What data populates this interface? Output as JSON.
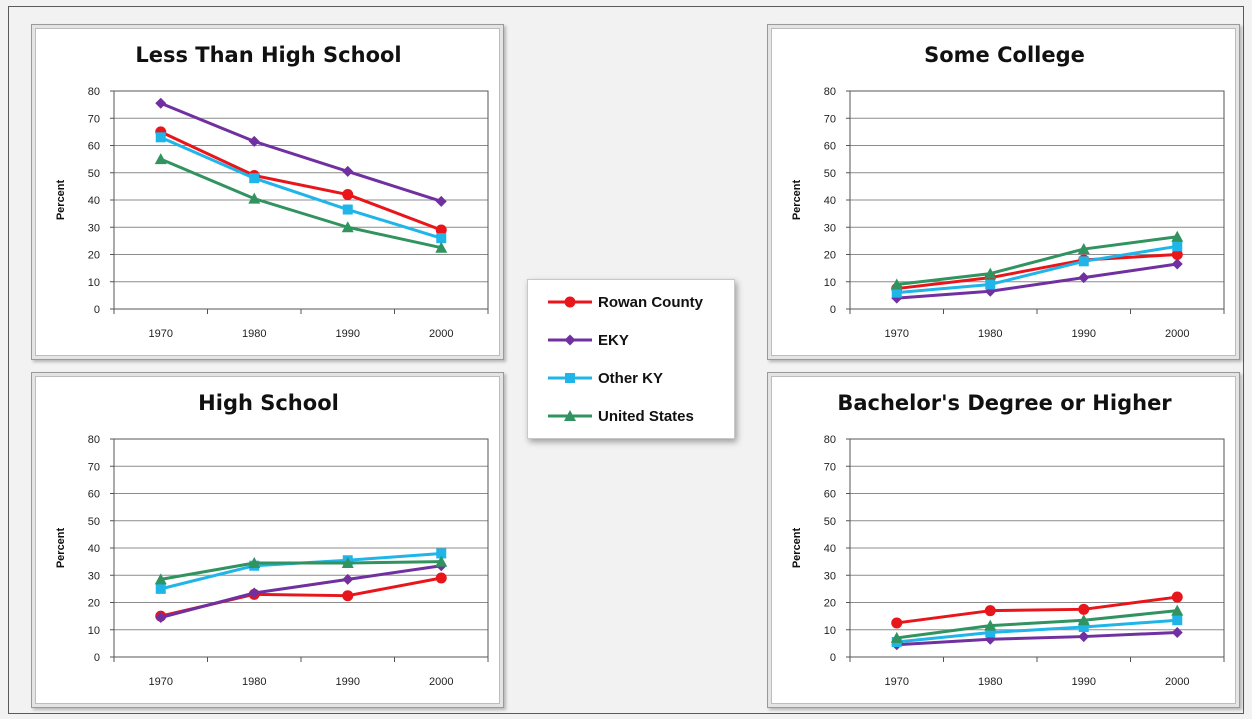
{
  "series_meta": [
    {
      "name": "Rowan County",
      "color": "#e8151b",
      "marker": "circle"
    },
    {
      "name": "EKY",
      "color": "#7030a0",
      "marker": "diamond"
    },
    {
      "name": "Other KY",
      "color": "#1fb5e9",
      "marker": "square"
    },
    {
      "name": "United States",
      "color": "#31935f",
      "marker": "triangle"
    }
  ],
  "chart_data": [
    {
      "type": "line",
      "title": "Less Than High School",
      "ylabel": "Percent",
      "xlabel": "",
      "categories": [
        "1970",
        "1980",
        "1990",
        "2000"
      ],
      "ylim": [
        0,
        80
      ],
      "yticks": [
        0,
        10,
        20,
        30,
        40,
        50,
        60,
        70,
        80
      ],
      "grid": true,
      "series": [
        {
          "name": "Rowan County",
          "values": [
            65,
            49,
            42,
            29
          ]
        },
        {
          "name": "EKY",
          "values": [
            75.5,
            61.5,
            50.5,
            39.5
          ]
        },
        {
          "name": "Other KY",
          "values": [
            63,
            48,
            36.5,
            26
          ]
        },
        {
          "name": "United States",
          "values": [
            55,
            40.5,
            30,
            22.5
          ]
        }
      ]
    },
    {
      "type": "line",
      "title": "Some College",
      "ylabel": "Percent",
      "xlabel": "",
      "categories": [
        "1970",
        "1980",
        "1990",
        "2000"
      ],
      "ylim": [
        0,
        80
      ],
      "yticks": [
        0,
        10,
        20,
        30,
        40,
        50,
        60,
        70,
        80
      ],
      "grid": true,
      "series": [
        {
          "name": "Rowan County",
          "values": [
            7.5,
            11.5,
            18,
            20
          ]
        },
        {
          "name": "EKY",
          "values": [
            4,
            6.5,
            11.5,
            16.5
          ]
        },
        {
          "name": "Other KY",
          "values": [
            6,
            9,
            17.5,
            23
          ]
        },
        {
          "name": "United States",
          "values": [
            9,
            13,
            22,
            26.5
          ]
        }
      ]
    },
    {
      "type": "line",
      "title": "High School",
      "ylabel": "Percent",
      "xlabel": "",
      "categories": [
        "1970",
        "1980",
        "1990",
        "2000"
      ],
      "ylim": [
        0,
        80
      ],
      "yticks": [
        0,
        10,
        20,
        30,
        40,
        50,
        60,
        70,
        80
      ],
      "grid": true,
      "series": [
        {
          "name": "Rowan County",
          "values": [
            15,
            23,
            22.5,
            29
          ]
        },
        {
          "name": "EKY",
          "values": [
            14.5,
            23.5,
            28.5,
            33.5
          ]
        },
        {
          "name": "Other KY",
          "values": [
            25,
            33.5,
            35.5,
            38
          ]
        },
        {
          "name": "United States",
          "values": [
            28.5,
            34.5,
            34.5,
            35
          ]
        }
      ]
    },
    {
      "type": "line",
      "title": "Bachelor's Degree or Higher",
      "ylabel": "Percent",
      "xlabel": "",
      "categories": [
        "1970",
        "1980",
        "1990",
        "2000"
      ],
      "ylim": [
        0,
        80
      ],
      "yticks": [
        0,
        10,
        20,
        30,
        40,
        50,
        60,
        70,
        80
      ],
      "grid": true,
      "series": [
        {
          "name": "Rowan County",
          "values": [
            12.5,
            17,
            17.5,
            22
          ]
        },
        {
          "name": "EKY",
          "values": [
            4.5,
            6.5,
            7.5,
            9
          ]
        },
        {
          "name": "Other KY",
          "values": [
            5.5,
            9,
            11,
            13.5
          ]
        },
        {
          "name": "United States",
          "values": [
            7,
            11.5,
            13.5,
            17
          ]
        }
      ]
    }
  ]
}
